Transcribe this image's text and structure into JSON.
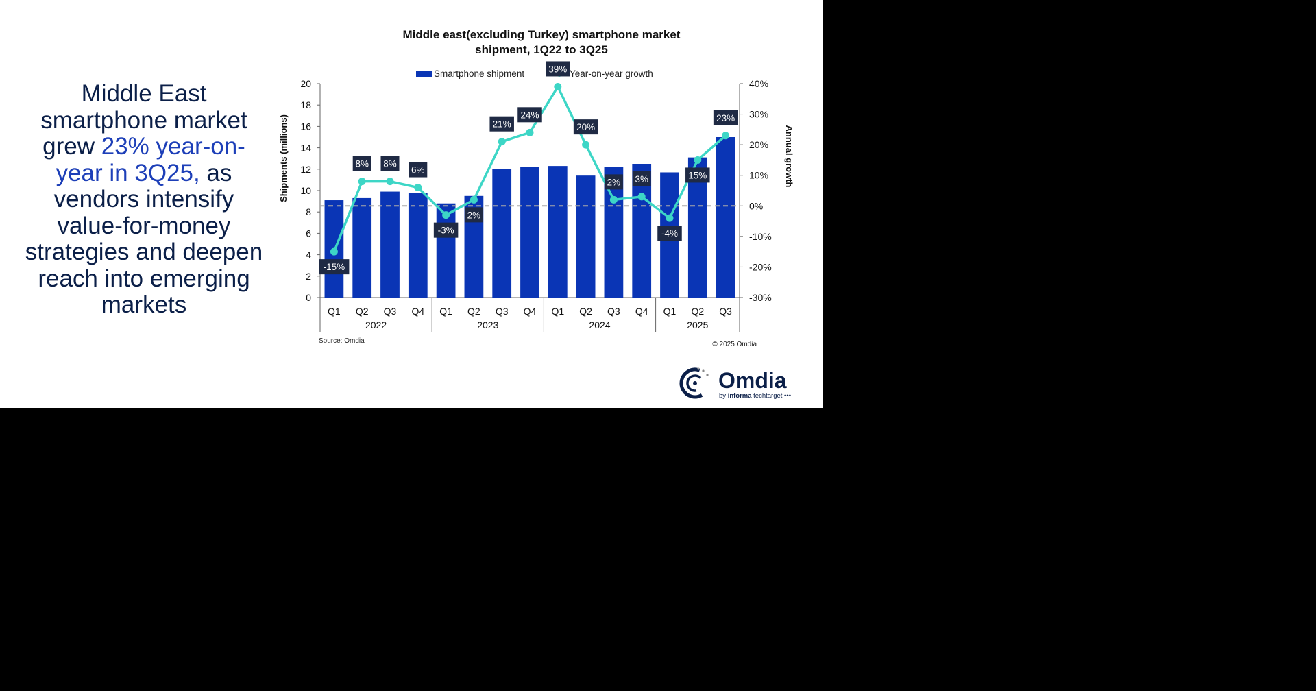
{
  "headline": {
    "part1": "Middle East smartphone market grew ",
    "highlight": "23% year-on-year in 3Q25,",
    "part2": " as vendors intensify value-for-money strategies and deepen reach into emerging markets"
  },
  "chart_data": {
    "type": "bar",
    "title_line1": "Middle east(excluding Turkey) smartphone market",
    "title_line2": "shipment, 1Q22 to 3Q25",
    "categories": [
      "Q1",
      "Q2",
      "Q3",
      "Q4",
      "Q1",
      "Q2",
      "Q3",
      "Q4",
      "Q1",
      "Q2",
      "Q3",
      "Q4",
      "Q1",
      "Q2",
      "Q3"
    ],
    "years": [
      {
        "label": "2022",
        "quarters": 4
      },
      {
        "label": "2023",
        "quarters": 4
      },
      {
        "label": "2024",
        "quarters": 4
      },
      {
        "label": "2025",
        "quarters": 3
      }
    ],
    "series": [
      {
        "name": "Smartphone shipment",
        "type": "bar",
        "axis": "left",
        "color": "#0a35b5",
        "values": [
          9.1,
          9.3,
          9.9,
          9.8,
          8.8,
          9.5,
          12.0,
          12.2,
          12.3,
          11.4,
          12.2,
          12.5,
          11.7,
          13.1,
          15.0
        ]
      },
      {
        "name": "Year-on-year growth",
        "type": "line",
        "axis": "right",
        "color": "#3dd6c6",
        "values": [
          -15,
          8,
          8,
          6,
          -3,
          2,
          21,
          24,
          39,
          20,
          2,
          3,
          -4,
          15,
          23
        ],
        "labels": [
          "-15%",
          "8%",
          "8%",
          "6%",
          "-3%",
          "2%",
          "21%",
          "24%",
          "39%",
          "20%",
          "2%",
          "3%",
          "-4%",
          "15%",
          "23%"
        ]
      }
    ],
    "ylabel": "Shipments (millions)",
    "ylabel_right": "Annual growth",
    "ylim": [
      0,
      20
    ],
    "yticks": [
      0,
      2,
      4,
      6,
      8,
      10,
      12,
      14,
      16,
      18,
      20
    ],
    "ylim_right": [
      -30,
      40
    ],
    "yticks_right": [
      "-30%",
      "-20%",
      "-10%",
      "0%",
      "10%",
      "20%",
      "30%",
      "40%"
    ],
    "zero_line": "dashed",
    "grid": false,
    "legend": "top",
    "source": "Source: Omdia",
    "copyright": "© 2025 Omdia",
    "label_box_color": "#1f2a44"
  },
  "logo": {
    "name": "Omdia",
    "tagline": "by informa techtarget"
  }
}
